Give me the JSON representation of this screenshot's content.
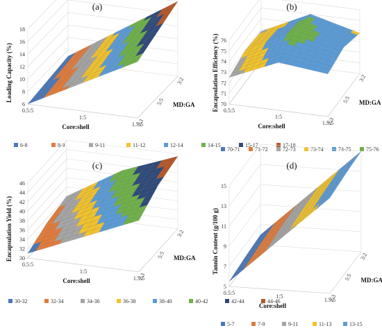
{
  "chart_data": [
    {
      "type": "surface",
      "panel": "(a)",
      "zlabel": "Loading Capacity (%)",
      "xlabel": "Core:shell",
      "ylabel": "MD:GA",
      "x_ticks": [
        "0.5:5",
        "1:5",
        "1.5:5"
      ],
      "y_ticks": [
        "2:3",
        "5:5",
        "3:2"
      ],
      "z_ticks": [
        "6",
        "8",
        "10",
        "12",
        "14",
        "16",
        "18"
      ],
      "zlim": [
        6,
        18
      ],
      "x": [
        "0.5:5",
        "1:5",
        "1.5:5"
      ],
      "y": [
        "2:3",
        "5:5",
        "3:2"
      ],
      "z": [
        [
          6,
          10.5,
          15
        ],
        [
          6.5,
          11.5,
          16.5
        ],
        [
          7,
          12.5,
          18
        ]
      ],
      "legend": [
        {
          "label": "6-8",
          "color": "#4a78b8"
        },
        {
          "label": "8-9",
          "color": "#e07b3c"
        },
        {
          "label": "9-11",
          "color": "#a5a5a5"
        },
        {
          "label": "11-12",
          "color": "#f0c22e"
        },
        {
          "label": "12-14",
          "color": "#5b9bd5"
        },
        {
          "label": "14-15",
          "color": "#6fb04a"
        },
        {
          "label": "15-17",
          "color": "#2f4a7a"
        },
        {
          "label": "17-18",
          "color": "#b5582a"
        }
      ]
    },
    {
      "type": "surface",
      "panel": "(b)",
      "zlabel": "Encapsulation Efficiency (%)",
      "xlabel": "Core:shell",
      "ylabel": "MD:GA",
      "x_ticks": [
        "0.5:5",
        "1:5",
        "1.5:5"
      ],
      "y_ticks": [
        "2:3",
        "5:5",
        "3:2"
      ],
      "z_ticks": [
        "70",
        "71",
        "72",
        "73",
        "74",
        "75",
        "76"
      ],
      "zlim": [
        70,
        76
      ],
      "x": [
        "0.5:5",
        "1:5",
        "1.5:5"
      ],
      "y": [
        "2:3",
        "5:5",
        "3:2"
      ],
      "z": [
        [
          72.5,
          74.5,
          74
        ],
        [
          73,
          75.5,
          74.5
        ],
        [
          72.8,
          75,
          73.8
        ]
      ],
      "legend": [
        {
          "label": "70-71",
          "color": "#4a78b8"
        },
        {
          "label": "71-72",
          "color": "#e07b3c"
        },
        {
          "label": "72-73",
          "color": "#a5a5a5"
        },
        {
          "label": "73-74",
          "color": "#f0c22e"
        },
        {
          "label": "74-75",
          "color": "#5b9bd5"
        },
        {
          "label": "75-76",
          "color": "#6fb04a"
        }
      ]
    },
    {
      "type": "surface",
      "panel": "(c)",
      "zlabel": "Encapsulation Yield (%)",
      "xlabel": "Core:shell",
      "ylabel": "MD:GA",
      "x_ticks": [
        "0.5:5",
        "1:5",
        "1.5:5"
      ],
      "y_ticks": [
        "2:3",
        "5:5",
        "3:2"
      ],
      "z_ticks": [
        "30",
        "32",
        "34",
        "36",
        "38",
        "40",
        "42",
        "44",
        "46"
      ],
      "zlim": [
        30,
        46
      ],
      "x": [
        "0.5:5",
        "1:5",
        "1.5:5"
      ],
      "y": [
        "2:3",
        "5:5",
        "3:2"
      ],
      "z": [
        [
          31,
          36,
          41
        ],
        [
          33,
          39,
          44
        ],
        [
          34,
          41,
          45.5
        ]
      ],
      "legend": [
        {
          "label": "30-32",
          "color": "#4a78b8"
        },
        {
          "label": "32-34",
          "color": "#e07b3c"
        },
        {
          "label": "34-36",
          "color": "#a5a5a5"
        },
        {
          "label": "36-38",
          "color": "#f0c22e"
        },
        {
          "label": "38-40",
          "color": "#5b9bd5"
        },
        {
          "label": "40-42",
          "color": "#6fb04a"
        },
        {
          "label": "42-44",
          "color": "#2f4a7a"
        },
        {
          "label": "44-46",
          "color": "#b5582a"
        }
      ]
    },
    {
      "type": "surface",
      "panel": "(d)",
      "zlabel": "Tannin Content (g/100 g)",
      "xlabel": "Core:shell",
      "ylabel": "MD:GA",
      "x_ticks": [
        "0.5:5",
        "1:5",
        "1.5:5"
      ],
      "y_ticks": [
        "2:3",
        "5:5",
        "3:2"
      ],
      "z_ticks": [
        "5",
        "7",
        "9",
        "11",
        "13",
        "15"
      ],
      "zlim": [
        5,
        15
      ],
      "x": [
        "0.5:5",
        "1:5",
        "1.5:5"
      ],
      "y": [
        "2:3",
        "5:5",
        "3:2"
      ],
      "z": [
        [
          5.5,
          10,
          14.5
        ],
        [
          5.8,
          10.3,
          14.8
        ],
        [
          6,
          10.5,
          15
        ]
      ],
      "legend": [
        {
          "label": "5-7",
          "color": "#4a78b8"
        },
        {
          "label": "7-9",
          "color": "#e07b3c"
        },
        {
          "label": "9-11",
          "color": "#a5a5a5"
        },
        {
          "label": "11-13",
          "color": "#f0c22e"
        },
        {
          "label": "13-15",
          "color": "#5b9bd5"
        }
      ]
    }
  ]
}
